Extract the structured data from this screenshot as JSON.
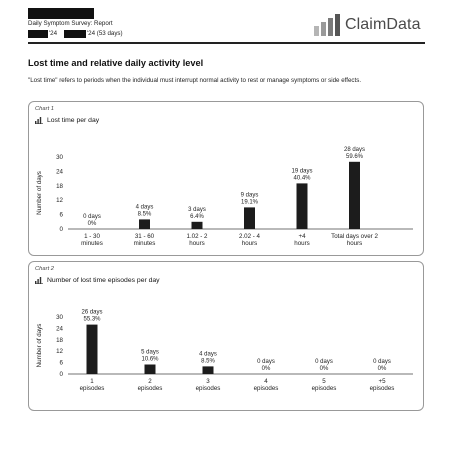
{
  "header": {
    "report_title": "Daily Symptom Survey: Report",
    "date_start_suffix": "'24",
    "date_end_suffix": "'24 (53 days)",
    "logo_text": "ClaimData"
  },
  "page": {
    "title": "Lost time and relative daily activity level",
    "description": "\"Lost time\" refers to periods when the individual must interrupt normal activity to rest or manage symptoms or side effects."
  },
  "chart_data": [
    {
      "kicker": "Chart 1",
      "title": "Lost time per day",
      "type": "bar",
      "ylabel": "Number of days",
      "ylim": [
        0,
        30
      ],
      "yticks": [
        0,
        6,
        12,
        18,
        24,
        30
      ],
      "grid": false,
      "categories": [
        [
          "1 - 30",
          "minutes"
        ],
        [
          "31 - 60",
          "minutes"
        ],
        [
          "1.02 - 2",
          "hours"
        ],
        [
          "2.02 - 4",
          "hours"
        ],
        [
          "+4",
          "hours"
        ],
        [
          "Total days over 2",
          "hours"
        ]
      ],
      "values": [
        0,
        4,
        3,
        9,
        19,
        28
      ],
      "label_days": [
        "0 days",
        "4 days",
        "3 days",
        "9 days",
        "19 days",
        "28 days"
      ],
      "label_pct": [
        "0%",
        "8.5%",
        "6.4%",
        "19.1%",
        "40.4%",
        "59.6%"
      ]
    },
    {
      "kicker": "Chart 2",
      "title": "Number of lost time episodes per day",
      "type": "bar",
      "ylabel": "Number of days",
      "ylim": [
        0,
        30
      ],
      "yticks": [
        0,
        6,
        12,
        18,
        24,
        30
      ],
      "grid": false,
      "categories": [
        [
          "1",
          "episodes"
        ],
        [
          "2",
          "episodes"
        ],
        [
          "3",
          "episodes"
        ],
        [
          "4",
          "episodes"
        ],
        [
          "5",
          "episodes"
        ],
        [
          "+5",
          "episodes"
        ]
      ],
      "values": [
        26,
        5,
        4,
        0,
        0,
        0
      ],
      "label_days": [
        "26 days",
        "5 days",
        "4 days",
        "0 days",
        "0 days",
        "0 days"
      ],
      "label_pct": [
        "55.3%",
        "10.6%",
        "8.5%",
        "0%",
        "0%",
        "0%"
      ]
    }
  ]
}
